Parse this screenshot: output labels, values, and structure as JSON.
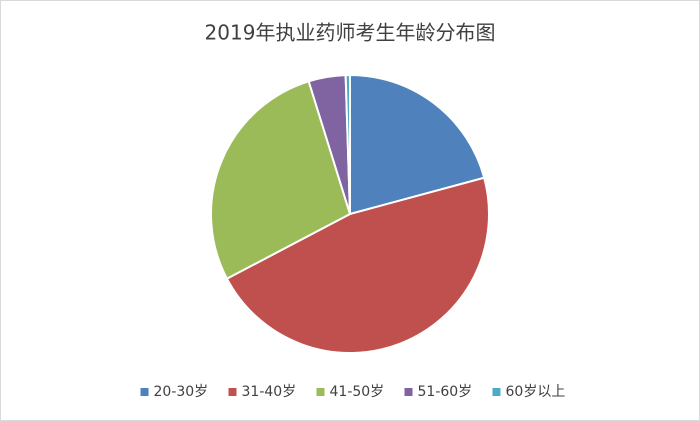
{
  "chart_data": {
    "type": "pie",
    "title": "2019年执业药师考生年龄分布图",
    "categories": [
      "20-30岁",
      "31-40岁",
      "41-50岁",
      "51-60岁",
      "60岁以上"
    ],
    "values": [
      20.8,
      46.5,
      27.9,
      4.3,
      0.5
    ],
    "colors": [
      "#4f81bd",
      "#c0504d",
      "#9bbb59",
      "#8064a2",
      "#4bacc6"
    ],
    "legend": "bottom"
  }
}
